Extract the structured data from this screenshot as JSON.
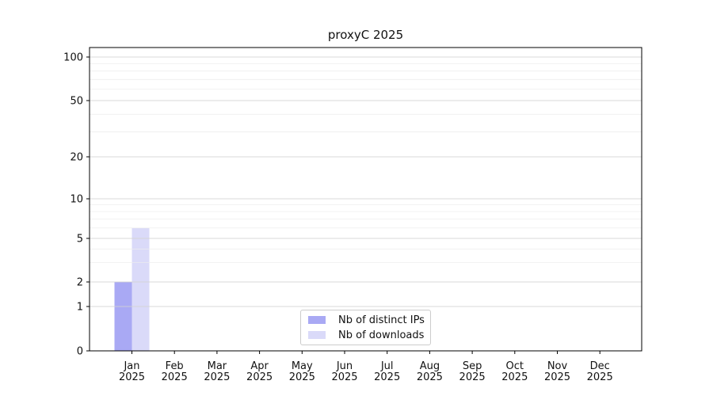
{
  "chart_data": {
    "type": "bar",
    "title": "proxyC 2025",
    "categories": [
      "Jan 2025",
      "Feb 2025",
      "Mar 2025",
      "Apr 2025",
      "May 2025",
      "Jun 2025",
      "Jul 2025",
      "Aug 2025",
      "Sep 2025",
      "Oct 2025",
      "Nov 2025",
      "Dec 2025"
    ],
    "series": [
      {
        "name": "Nb of distinct IPs",
        "color": "#a9a9f4",
        "values": [
          2,
          0,
          0,
          0,
          0,
          0,
          0,
          0,
          0,
          0,
          0,
          0
        ]
      },
      {
        "name": "Nb of downloads",
        "color": "#dadaf9",
        "values": [
          6,
          0,
          0,
          0,
          0,
          0,
          0,
          0,
          0,
          0,
          0,
          0
        ]
      }
    ],
    "y_axis": {
      "scale": "symlog",
      "ticks": [
        0,
        1,
        2,
        5,
        10,
        20,
        50,
        100
      ],
      "minor_ticks": [
        3,
        4,
        6,
        7,
        8,
        9,
        30,
        40,
        60,
        70,
        80,
        90
      ],
      "range": [
        0,
        117
      ]
    },
    "grid": {
      "major": true,
      "minor": true,
      "major_color": "#d2d2d2",
      "minor_color": "#ececec"
    },
    "legend": {
      "location": "lower center",
      "items": [
        "Nb of distinct IPs",
        "Nb of downloads"
      ]
    }
  }
}
